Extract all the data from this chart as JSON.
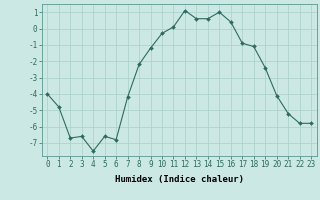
{
  "x": [
    0,
    1,
    2,
    3,
    4,
    5,
    6,
    7,
    8,
    9,
    10,
    11,
    12,
    13,
    14,
    15,
    16,
    17,
    18,
    19,
    20,
    21,
    22,
    23
  ],
  "y": [
    -4.0,
    -4.8,
    -6.7,
    -6.6,
    -7.5,
    -6.6,
    -6.8,
    -4.2,
    -2.2,
    -1.2,
    -0.3,
    0.1,
    1.1,
    0.6,
    0.6,
    1.0,
    0.4,
    -0.9,
    -1.1,
    -2.4,
    -4.1,
    -5.2,
    -5.8,
    -5.8
  ],
  "line_color": "#2e6b5e",
  "marker": "D",
  "marker_size": 2.0,
  "bg_color": "#cce8e4",
  "grid_color": "#aacfca",
  "xlabel": "Humidex (Indice chaleur)",
  "ylim": [
    -7.8,
    1.5
  ],
  "xlim": [
    -0.5,
    23.5
  ],
  "yticks": [
    1,
    0,
    -1,
    -2,
    -3,
    -4,
    -5,
    -6,
    -7
  ],
  "xticks": [
    0,
    1,
    2,
    3,
    4,
    5,
    6,
    7,
    8,
    9,
    10,
    11,
    12,
    13,
    14,
    15,
    16,
    17,
    18,
    19,
    20,
    21,
    22,
    23
  ],
  "xlabel_fontsize": 6.5,
  "tick_fontsize": 5.5
}
